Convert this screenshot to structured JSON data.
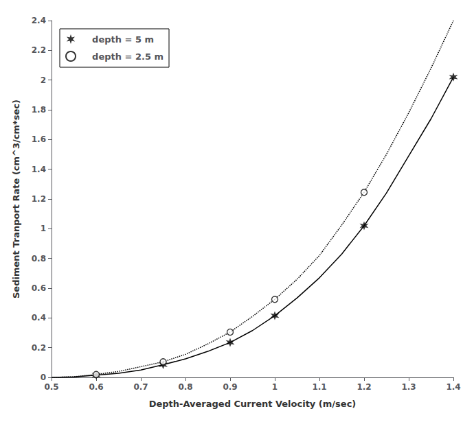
{
  "chart_data": {
    "type": "line",
    "title": "",
    "xlabel": "Depth-Averaged Current Velocity (m/sec)",
    "ylabel": "Sediment Tranport Rate (cm^3/cm*sec)",
    "xlim": [
      0.5,
      1.4
    ],
    "ylim": [
      0.0,
      2.4
    ],
    "xticks": [
      0.5,
      0.6,
      0.7,
      0.8,
      0.9,
      1,
      1.1,
      1.2,
      1.3,
      1.4
    ],
    "yticks": [
      0,
      0.2,
      0.4,
      0.6,
      0.8,
      1,
      1.2,
      1.4,
      1.6,
      1.8,
      2,
      2.2,
      2.4
    ],
    "grid": false,
    "legend": "upper left",
    "series": [
      {
        "type": "line",
        "line_style": "solid",
        "color": "#000000",
        "x": [
          0.5,
          0.55,
          0.6,
          0.65,
          0.7,
          0.75,
          0.8,
          0.85,
          0.9,
          0.95,
          1.0,
          1.05,
          1.1,
          1.15,
          1.2,
          1.25,
          1.3,
          1.35,
          1.4
        ],
        "values": [
          0.0,
          0.003,
          0.015,
          0.028,
          0.05,
          0.085,
          0.125,
          0.175,
          0.235,
          0.315,
          0.415,
          0.535,
          0.67,
          0.83,
          1.02,
          1.24,
          1.49,
          1.74,
          2.02
        ]
      },
      {
        "type": "line",
        "line_style": "dotted",
        "color": "#000000",
        "x": [
          0.5,
          0.55,
          0.6,
          0.65,
          0.7,
          0.75,
          0.8,
          0.85,
          0.9,
          0.95,
          1.0,
          1.05,
          1.1,
          1.15,
          1.2,
          1.25,
          1.3,
          1.35,
          1.4
        ],
        "values": [
          0.0,
          0.004,
          0.02,
          0.04,
          0.072,
          0.105,
          0.155,
          0.225,
          0.305,
          0.41,
          0.525,
          0.66,
          0.82,
          1.025,
          1.245,
          1.5,
          1.78,
          2.08,
          2.4
        ]
      },
      {
        "name": "   depth = 5 m",
        "type": "scatter",
        "marker": "star",
        "color": "#000000",
        "x": [
          0.6,
          0.75,
          0.9,
          1.0,
          1.2,
          1.4
        ],
        "values": [
          0.015,
          0.085,
          0.235,
          0.415,
          1.02,
          2.02
        ]
      },
      {
        "name": "   depth = 2.5 m",
        "type": "scatter",
        "marker": "circle",
        "color": "#000000",
        "x": [
          0.6,
          0.75,
          0.9,
          1.0,
          1.2
        ],
        "values": [
          0.02,
          0.105,
          0.305,
          0.525,
          1.245
        ]
      }
    ]
  }
}
